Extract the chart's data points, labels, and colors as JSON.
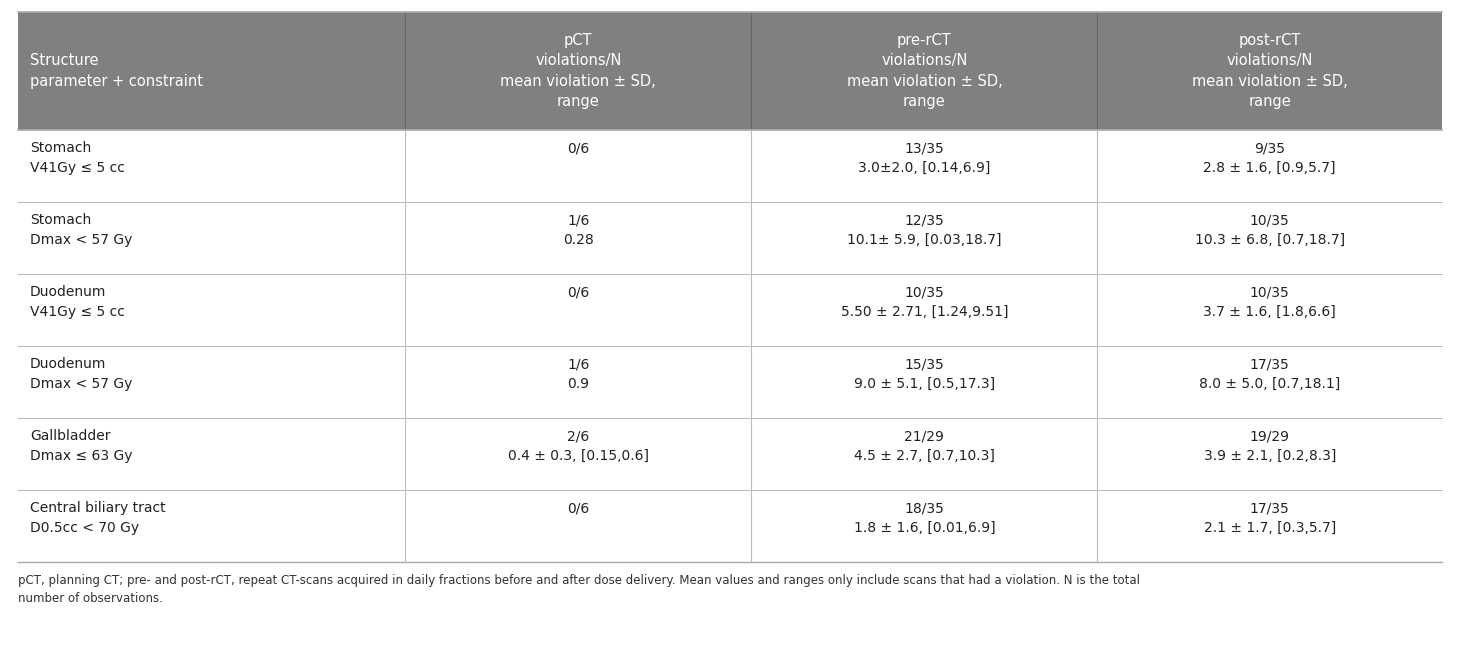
{
  "header_bg": "#808080",
  "header_text_color": "#ffffff",
  "cell_bg": "#ffffff",
  "cell_text_color": "#222222",
  "line_color": "#bbbbbb",
  "footer_text_color": "#333333",
  "headers": [
    "Structure\nparameter + constraint",
    "pCT\nviolations/N\nmean violation ± SD,\nrange",
    "pre-rCT\nviolations/N\nmean violation ± SD,\nrange",
    "post-rCT\nviolations/N\nmean violation ± SD,\nrange"
  ],
  "rows": [
    [
      "Stomach\nV41Gy ≤ 5 cc",
      "0/6",
      "13/35\n3.0±2.0, [0.14,6.9]",
      "9/35\n2.8 ± 1.6, [0.9,5.7]"
    ],
    [
      "Stomach\nDmax < 57 Gy",
      "1/6\n0.28",
      "12/35\n10.1± 5.9, [0.03,18.7]",
      "10/35\n10.3 ± 6.8, [0.7,18.7]"
    ],
    [
      "Duodenum\nV41Gy ≤ 5 cc",
      "0/6",
      "10/35\n5.50 ± 2.71, [1.24,9.51]",
      "10/35\n3.7 ± 1.6, [1.8,6.6]"
    ],
    [
      "Duodenum\nDmax < 57 Gy",
      "1/6\n0.9",
      "15/35\n9.0 ± 5.1, [0.5,17.3]",
      "17/35\n8.0 ± 5.0, [0.7,18.1]"
    ],
    [
      "Gallbladder\nDmax ≤ 63 Gy",
      "2/6\n0.4 ± 0.3, [0.15,0.6]",
      "21/29\n4.5 ± 2.7, [0.7,10.3]",
      "19/29\n3.9 ± 2.1, [0.2,8.3]"
    ],
    [
      "Central biliary tract\nD0.5cc < 70 Gy",
      "0/6",
      "18/35\n1.8 ± 1.6, [0.01,6.9]",
      "17/35\n2.1 ± 1.7, [0.3,5.7]"
    ]
  ],
  "footer": "pCT, planning CT; pre- and post-rCT, repeat CT-scans acquired in daily fractions before and after dose delivery. Mean values and ranges only include scans that had a violation. N is the total\nnumber of observations.",
  "fig_width": 14.6,
  "fig_height": 6.6,
  "dpi": 100
}
